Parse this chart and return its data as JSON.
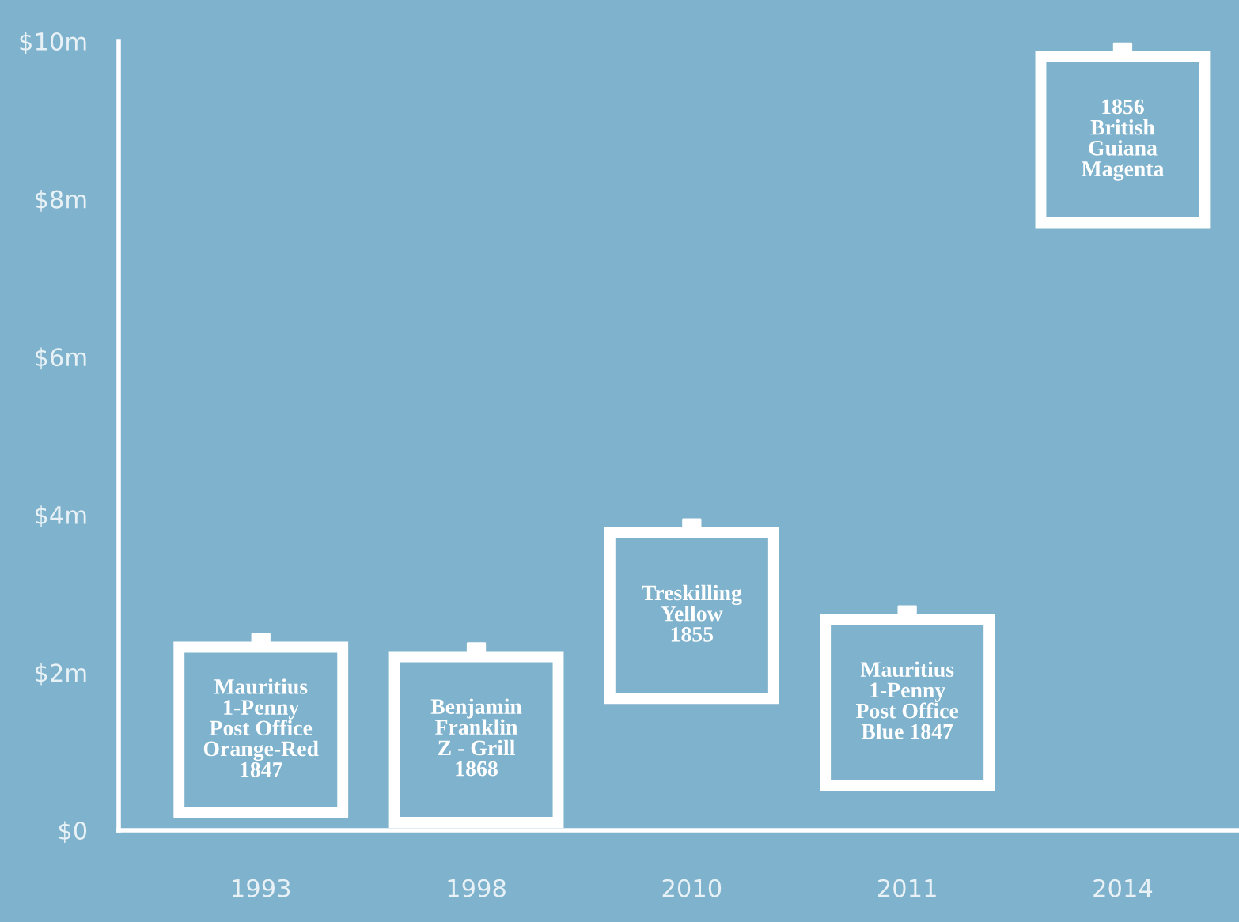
{
  "chart_data": {
    "type": "scatter",
    "categories": [
      "1993",
      "1998",
      "2010",
      "2011",
      "2014"
    ],
    "values": [
      2.38,
      2.26,
      3.83,
      2.73,
      9.86
    ],
    "color": "#ffffff",
    "marker": "square",
    "ylim": [
      0,
      10
    ],
    "yticks": [
      {
        "value": 0,
        "label": "$0"
      },
      {
        "value": 2,
        "label": "$2m"
      },
      {
        "value": 4,
        "label": "$4m"
      },
      {
        "value": 6,
        "label": "$6m"
      },
      {
        "value": 8,
        "label": "$8m"
      },
      {
        "value": 10,
        "label": "$10m"
      }
    ],
    "grid": false,
    "annotations": [
      {
        "text": "Mauritius\n1-Penny\nPost Office\nOrange-Red\n1847",
        "x": "1993",
        "y": 2.38
      },
      {
        "text": "Benjamin\nFranklin\nZ - Grill\n1868",
        "x": "1998",
        "y": 2.26
      },
      {
        "text": "Treskilling\nYellow\n1855",
        "x": "2010",
        "y": 3.83
      },
      {
        "text": "Mauritius\n1-Penny\nPost Office\nBlue 1847",
        "x": "2011",
        "y": 2.73
      },
      {
        "text": "1856\nBritish\nGuiana\nMagenta",
        "x": "2014",
        "y": 9.86
      }
    ]
  }
}
